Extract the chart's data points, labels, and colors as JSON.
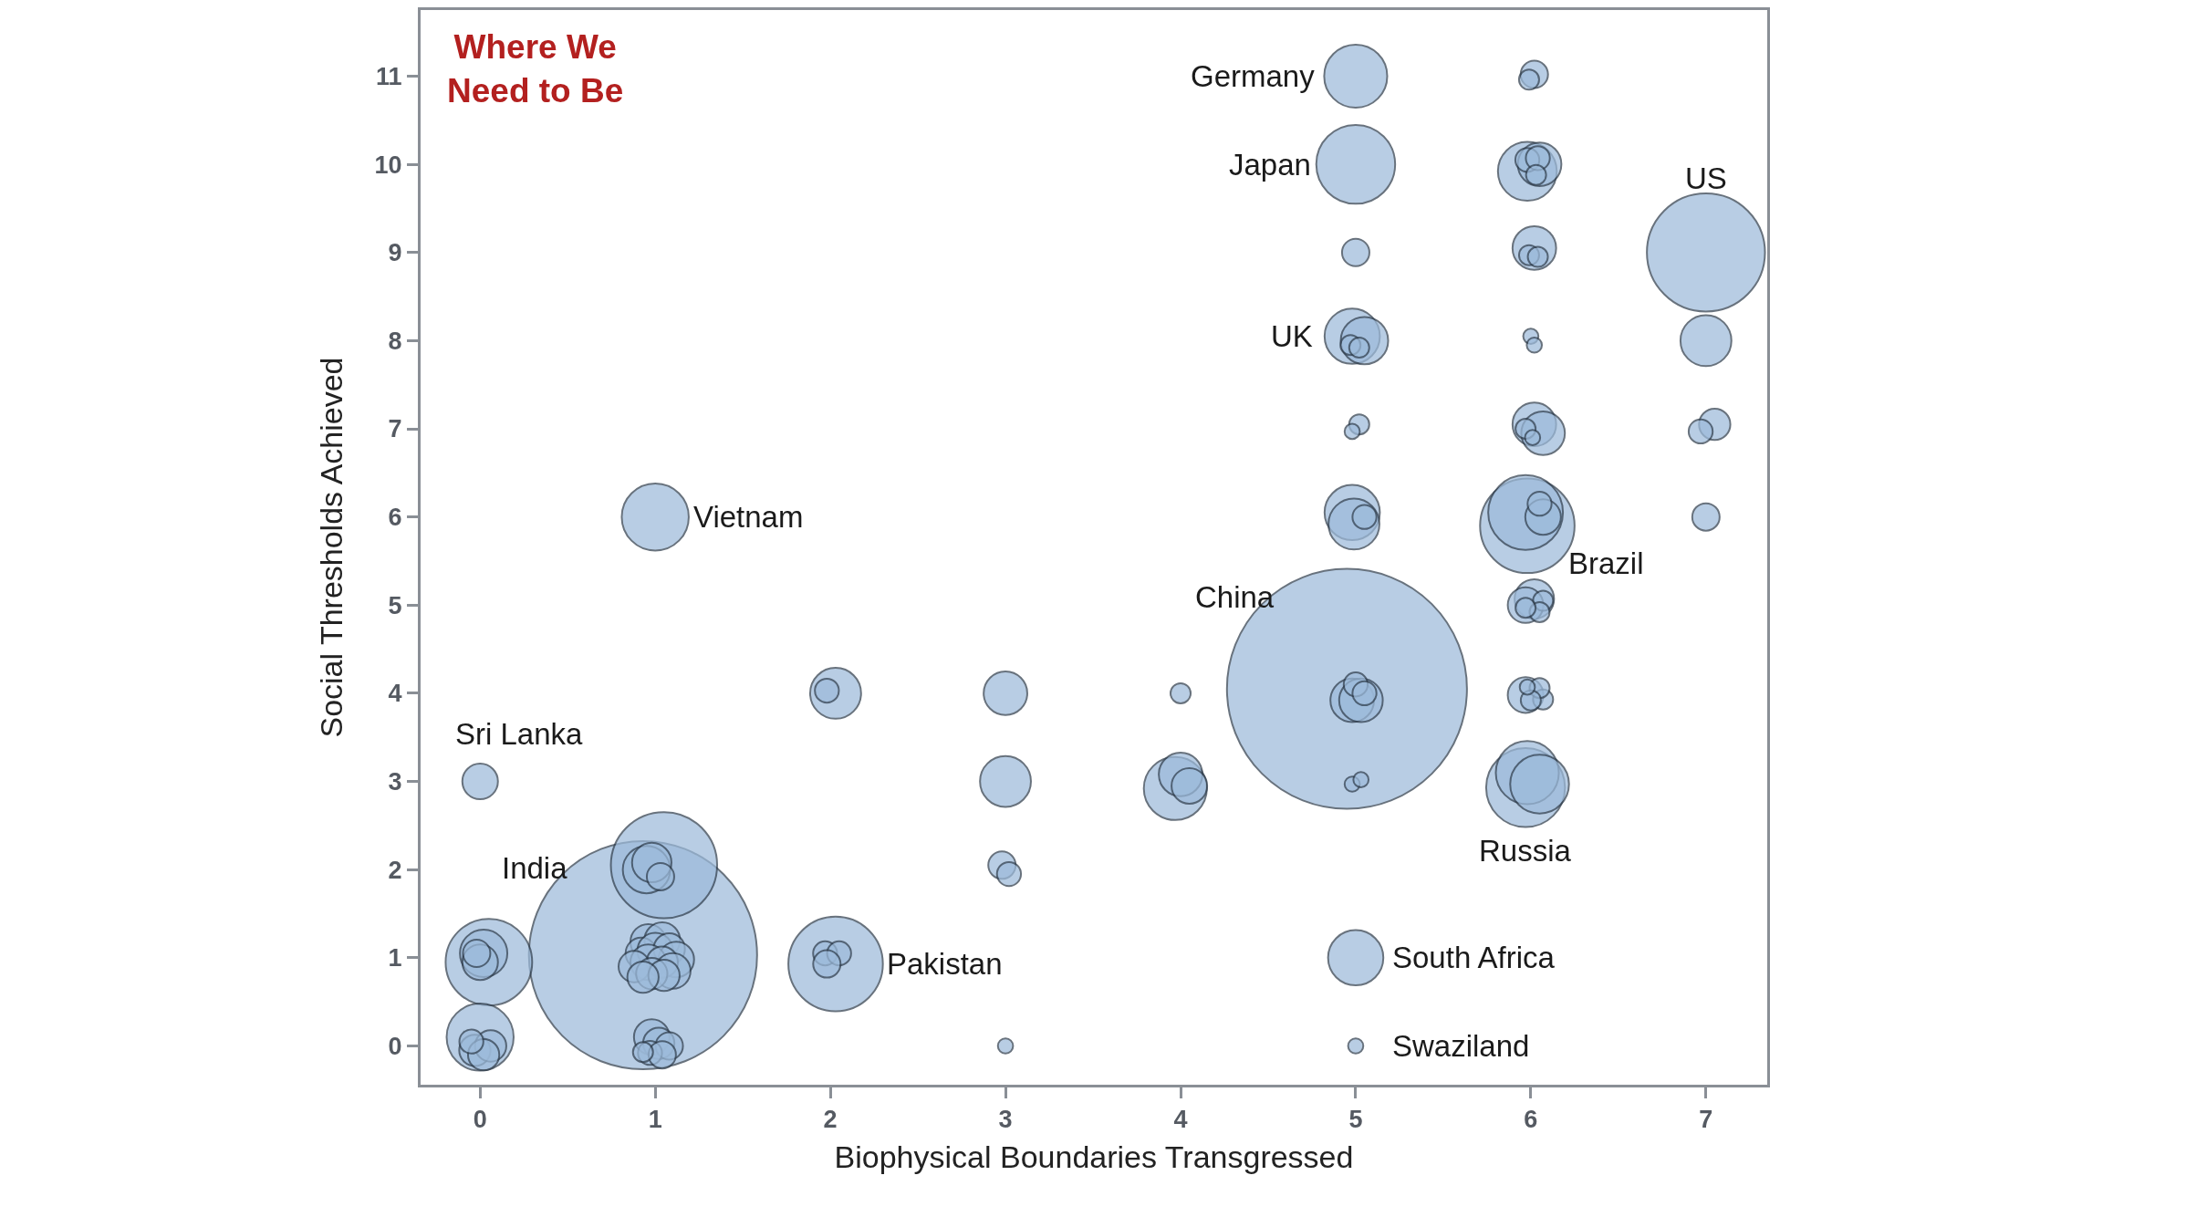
{
  "chart_data": {
    "type": "bubble",
    "title": "Where We Need to Be",
    "xlabel": "Biophysical Boundaries Transgressed",
    "ylabel": "Social Thresholds Achieved",
    "xlim": [
      -0.34,
      7.35
    ],
    "ylim": [
      -0.44,
      11.75
    ],
    "xticks": [
      0,
      1,
      2,
      3,
      4,
      5,
      6,
      7
    ],
    "yticks": [
      0,
      1,
      2,
      3,
      4,
      5,
      6,
      7,
      8,
      9,
      10,
      11
    ],
    "series": [
      {
        "color": "#9dbbdb",
        "x": [
          4.95,
          0.93,
          7,
          5.98,
          2.03,
          1.05,
          0.05,
          5,
          5.97,
          5,
          1,
          0,
          4.98,
          4.98,
          5,
          5.97,
          5.98,
          3.97,
          5.98,
          6.05,
          4.99,
          5.05,
          3,
          3,
          2.03,
          7,
          4.98,
          5.03,
          4.0,
          6.05,
          6.02,
          6.02,
          6.07,
          6.02,
          0.95,
          0.02,
          0.98,
          1.03,
          6.07,
          5.97,
          5.97,
          4.05,
          0,
          0,
          -0.02,
          0.96,
          1.04,
          0.92,
          1,
          1.08,
          1.12,
          0.96,
          1.04,
          0.88,
          1.1,
          0.98,
          1.05,
          0.93,
          0.98,
          1.02,
          1.08,
          0.97,
          1.04,
          0.93,
          -0.03,
          0.06,
          0.02,
          -0.05,
          5,
          4.97,
          5.02,
          5.02,
          4.98,
          5.05,
          5.0,
          5.05,
          4.98,
          5.03,
          5,
          6.02,
          5.99,
          5.98,
          6.04,
          6.03,
          5.99,
          6.04,
          6.0,
          6.02,
          5.97,
          6.01,
          6.05,
          6.07,
          6.05,
          5.97,
          6.07,
          6.05,
          6.0,
          5.98,
          7.05,
          6.97,
          7,
          4,
          2.98,
          3.02,
          3,
          1.98,
          1.97,
          2.05,
          1.98
        ],
        "values": [
          4.05,
          1.03,
          9,
          5.9,
          0.93,
          2.05,
          0.95,
          10,
          2.93,
          11,
          6,
          0.1,
          8.05,
          6.05,
          1,
          6.05,
          3.1,
          2.92,
          9.92,
          2.97,
          5.92,
          8.0,
          3,
          4,
          4.0,
          8,
          3.92,
          3.92,
          3.08,
          10.0,
          9.05,
          7.05,
          6.95,
          5.07,
          2.0,
          1.05,
          2.08,
          1.92,
          6.0,
          5.0,
          3.98,
          2.95,
          3,
          0.95,
          1.05,
          1.18,
          1.2,
          1.05,
          1.08,
          1.1,
          0.98,
          0.95,
          0.95,
          0.9,
          0.85,
          0.82,
          0.8,
          0.78,
          0.1,
          0.03,
          0,
          -0.08,
          -0.1,
          -0.07,
          -0.05,
          0,
          -0.1,
          0.05,
          9,
          7.95,
          7.92,
          7.05,
          6.97,
          6.0,
          4.1,
          4.0,
          2.97,
          3.02,
          0,
          11.02,
          10.96,
          10.05,
          10.07,
          9.88,
          8.97,
          8.95,
          8.05,
          7.95,
          7.0,
          6.9,
          6.15,
          5.05,
          4.92,
          4.97,
          3.93,
          4.06,
          3.92,
          4.07,
          7.05,
          6.97,
          6,
          4,
          2.05,
          1.95,
          0,
          4.03,
          1.05,
          1.05,
          0.93
        ],
        "sizes": [
          1,
          0.904,
          0.242,
          0.155,
          0.155,
          0.196,
          0.13,
          0.108,
          0.108,
          0.069,
          0.078,
          0.078,
          0.053,
          0.053,
          0.053,
          0.097,
          0.069,
          0.069,
          0.06,
          0.06,
          0.045,
          0.039,
          0.045,
          0.033,
          0.045,
          0.045,
          0.033,
          0.033,
          0.033,
          0.033,
          0.033,
          0.033,
          0.033,
          0.027,
          0.039,
          0.039,
          0.027,
          0.013,
          0.022,
          0.022,
          0.022,
          0.022,
          0.022,
          0.022,
          0.013,
          0.022,
          0.022,
          0.017,
          0.022,
          0.017,
          0.022,
          0.022,
          0.017,
          0.017,
          0.022,
          0.017,
          0.017,
          0.017,
          0.022,
          0.017,
          0.013,
          0.01,
          0.013,
          0.007,
          0.017,
          0.017,
          0.017,
          0.01,
          0.013,
          0.007,
          0.007,
          0.007,
          0.004,
          0.01,
          0.01,
          0.01,
          0.004,
          0.004,
          0.004,
          0.013,
          0.007,
          0.01,
          0.01,
          0.007,
          0.007,
          0.007,
          0.004,
          0.004,
          0.007,
          0.004,
          0.01,
          0.007,
          0.007,
          0.007,
          0.007,
          0.007,
          0.007,
          0.004,
          0.017,
          0.01,
          0.013,
          0.007,
          0.013,
          0.01,
          0.004,
          0.01,
          0.01,
          0.01,
          0.013
        ]
      }
    ],
    "annotations": [
      {
        "text": "Germany",
        "x": 5,
        "y": 11
      },
      {
        "text": "Japan",
        "x": 5,
        "y": 10
      },
      {
        "text": "US",
        "x": 7,
        "y": 9
      },
      {
        "text": "UK",
        "x": 4.98,
        "y": 8.05
      },
      {
        "text": "Vietnam",
        "x": 1,
        "y": 6
      },
      {
        "text": "Brazil",
        "x": 5.98,
        "y": 5.9
      },
      "China",
      {
        "text": "Sri Lanka",
        "x": 0,
        "y": 3
      },
      "India",
      {
        "text": "Pakistan",
        "x": 2.03,
        "y": 0.93
      },
      {
        "text": "Russia",
        "x": 5.97,
        "y": 2.93
      },
      {
        "text": "South Africa",
        "x": 5,
        "y": 1
      },
      {
        "text": "Swaziland",
        "x": 5,
        "y": 0
      }
    ]
  }
}
